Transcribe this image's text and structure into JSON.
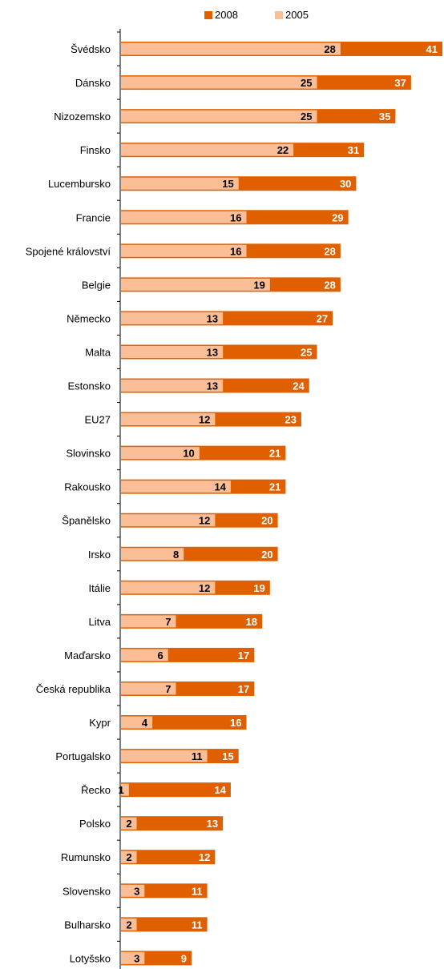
{
  "chart_data": {
    "type": "bar",
    "orientation": "horizontal",
    "categories": [
      "Švédsko",
      "Dánsko",
      "Nizozemsko",
      "Finsko",
      "Lucembursko",
      "Francie",
      "Spojené království",
      "Belgie",
      "Německo",
      "Malta",
      "Estonsko",
      "EU27",
      "Slovinsko",
      "Rakousko",
      "Španělsko",
      "Irsko",
      "Itálie",
      "Litva",
      "Maďarsko",
      "Česká republika",
      "Kypr",
      "Portugalsko",
      "Řecko",
      "Polsko",
      "Rumunsko",
      "Slovensko",
      "Bulharsko",
      "Lotyšsko"
    ],
    "series": [
      {
        "name": "2008",
        "color": "#E06000",
        "label_color": "#ffffff",
        "values": [
          41,
          37,
          35,
          31,
          30,
          29,
          28,
          28,
          27,
          25,
          24,
          23,
          21,
          21,
          20,
          20,
          19,
          18,
          17,
          17,
          16,
          15,
          14,
          13,
          12,
          11,
          11,
          9
        ]
      },
      {
        "name": "2005",
        "color": "#FBBE96",
        "label_color": "#000000",
        "values": [
          28,
          25,
          25,
          22,
          15,
          16,
          16,
          19,
          13,
          13,
          13,
          12,
          10,
          14,
          12,
          8,
          12,
          7,
          6,
          7,
          4,
          11,
          1,
          2,
          2,
          3,
          2,
          3
        ]
      }
    ],
    "title": "",
    "xlabel": "",
    "ylabel": "",
    "xlim": [
      0,
      41
    ],
    "legend_position": "top-center",
    "grid": false
  }
}
